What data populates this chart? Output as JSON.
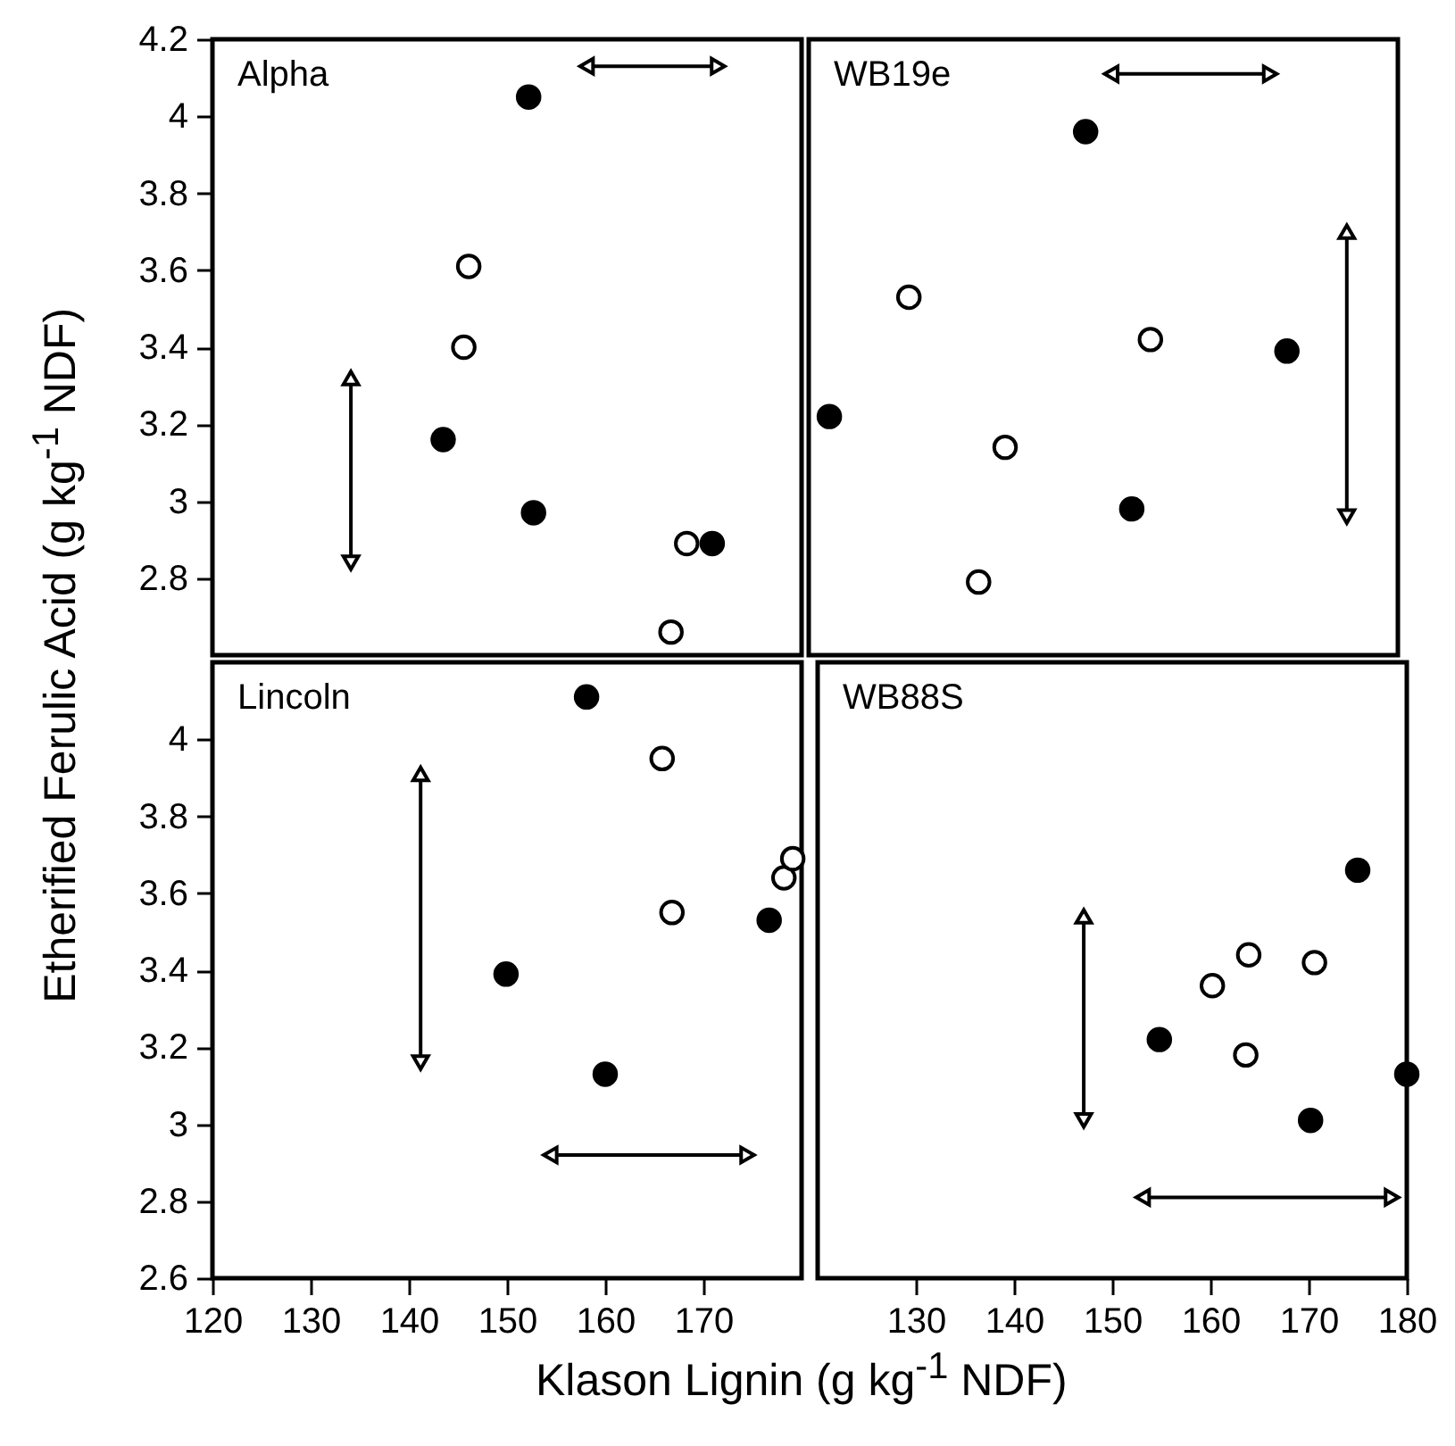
{
  "chart_data": [
    {
      "type": "scatter",
      "annotations": [
        "Alpha"
      ],
      "ylabel": "Etherified Ferulic Acid (g kg$^{-1}$ NDF)",
      "xlim": [
        120,
        180
      ],
      "ylim": [
        2.6,
        4.2
      ],
      "yticks": [
        2.8,
        3,
        3.2,
        3.4,
        3.6,
        3.8,
        4,
        4.2
      ],
      "tick_labels": "y",
      "marker": "circle",
      "series": [
        {
          "color": "#000000",
          "x": [
            152.2,
            143.5,
            152.7,
            170.9
          ],
          "values": [
            4.05,
            3.16,
            2.97,
            2.89
          ]
        },
        {
          "color": "#ffffff",
          "x": [
            146.1,
            145.6,
            168.3,
            166.7
          ],
          "values": [
            3.61,
            3.4,
            2.89,
            2.66
          ]
        },
        {
          "type": "line",
          "color": "#000000",
          "marker": "triangle",
          "x": [
            158.1,
            171.5
          ],
          "values": [
            4.13,
            4.13
          ]
        },
        {
          "type": "line",
          "color": "#000000",
          "marker": "triangle",
          "x": [
            134.1,
            134.1
          ],
          "values": [
            3.32,
            2.84
          ]
        }
      ]
    },
    {
      "type": "scatter",
      "annotations": [
        "WB19e"
      ],
      "xlim": [
        120,
        180
      ],
      "ylim": [
        2.6,
        4.2
      ],
      "tick_labels": false,
      "marker": "circle",
      "series": [
        {
          "color": "#000000",
          "x": [
            148.2,
            122.1,
            168.7,
            152.9
          ],
          "values": [
            3.96,
            3.22,
            3.39,
            2.98
          ]
        },
        {
          "color": "#ffffff",
          "x": [
            130.2,
            154.8,
            140,
            137.3
          ],
          "values": [
            3.53,
            3.42,
            3.14,
            2.79
          ]
        },
        {
          "type": "line",
          "color": "#000000",
          "marker": "triangle",
          "x": [
            150.8,
            167
          ],
          "values": [
            4.11,
            4.11
          ]
        },
        {
          "type": "line",
          "color": "#000000",
          "marker": "triangle",
          "x": [
            174.8,
            174.8
          ],
          "values": [
            3.7,
            2.96
          ]
        }
      ]
    },
    {
      "type": "scatter",
      "annotations": [
        "Lincoln"
      ],
      "xlabel": "Klason Lignin (g kg$^{-1}$ NDF)",
      "xlim": [
        120,
        180
      ],
      "ylim": [
        2.6,
        4.2
      ],
      "xticks": [
        120,
        130,
        140,
        150,
        160,
        170
      ],
      "yticks": [
        2.6,
        2.8,
        3,
        3.2,
        3.4,
        3.6,
        3.8,
        4
      ],
      "marker": "circle",
      "series": [
        {
          "color": "#000000",
          "x": [
            158.1,
            149.9,
            160,
            176.7
          ],
          "values": [
            4.11,
            3.39,
            3.13,
            3.53
          ]
        },
        {
          "color": "#ffffff",
          "x": [
            165.8,
            166.8,
            178.2,
            179.1
          ],
          "values": [
            3.95,
            3.55,
            3.64,
            3.69
          ]
        },
        {
          "type": "line",
          "color": "#000000",
          "marker": "triangle",
          "x": [
            141.2,
            141.2
          ],
          "values": [
            3.91,
            3.16
          ]
        },
        {
          "type": "line",
          "color": "#000000",
          "marker": "triangle",
          "x": [
            154.4,
            174.5
          ],
          "values": [
            2.92,
            2.92
          ]
        }
      ]
    },
    {
      "type": "scatter",
      "annotations": [
        "WB88S"
      ],
      "xlim": [
        120,
        180
      ],
      "ylim": [
        2.6,
        4.2
      ],
      "xticks": [
        130,
        140,
        150,
        160,
        170,
        180
      ],
      "tick_labels": "x",
      "marker": "circle",
      "series": [
        {
          "color": "#000000",
          "x": [
            175,
            154.8,
            170.2,
            180
          ],
          "values": [
            3.66,
            3.22,
            3.01,
            3.13
          ]
        },
        {
          "color": "#ffffff",
          "x": [
            160.2,
            163.9,
            170.6,
            163.6
          ],
          "values": [
            3.36,
            3.44,
            3.42,
            3.18
          ]
        },
        {
          "type": "line",
          "color": "#000000",
          "marker": "triangle",
          "x": [
            147.1,
            147.1
          ],
          "values": [
            3.54,
            3.01
          ]
        },
        {
          "type": "line",
          "color": "#000000",
          "marker": "triangle",
          "x": [
            153.1,
            178.5
          ],
          "values": [
            2.81,
            2.81
          ]
        }
      ]
    }
  ]
}
